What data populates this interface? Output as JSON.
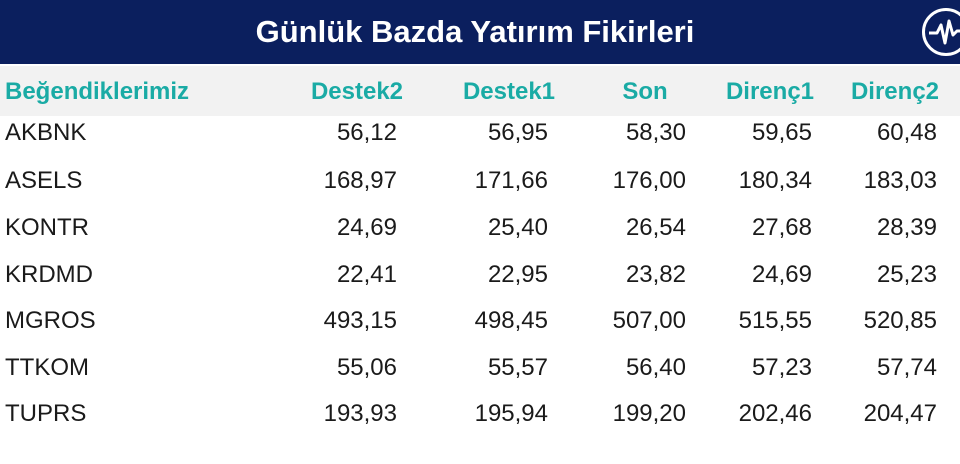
{
  "title": "Günlük Bazda Yatırım Fikirleri",
  "icon": "heartbeat-circle-icon",
  "colors": {
    "banner": "#0b1f5e",
    "header_text": "#1aaba5",
    "header_bg": "#f2f2f2"
  },
  "columns": [
    "Beğendiklerimiz",
    "Destek2",
    "Destek1",
    "Son",
    "Direnç1",
    "Direnç2"
  ],
  "rows": [
    [
      "AKBNK",
      "56,12",
      "56,95",
      "58,30",
      "59,65",
      "60,48"
    ],
    [
      "ASELS",
      "168,97",
      "171,66",
      "176,00",
      "180,34",
      "183,03"
    ],
    [
      "KONTR",
      "24,69",
      "25,40",
      "26,54",
      "27,68",
      "28,39"
    ],
    [
      "KRDMD",
      "22,41",
      "22,95",
      "23,82",
      "24,69",
      "25,23"
    ],
    [
      "MGROS",
      "493,15",
      "498,45",
      "507,00",
      "515,55",
      "520,85"
    ],
    [
      "TTKOM",
      "55,06",
      "55,57",
      "56,40",
      "57,23",
      "57,74"
    ],
    [
      "TUPRS",
      "193,93",
      "195,94",
      "199,20",
      "202,46",
      "204,47"
    ]
  ]
}
